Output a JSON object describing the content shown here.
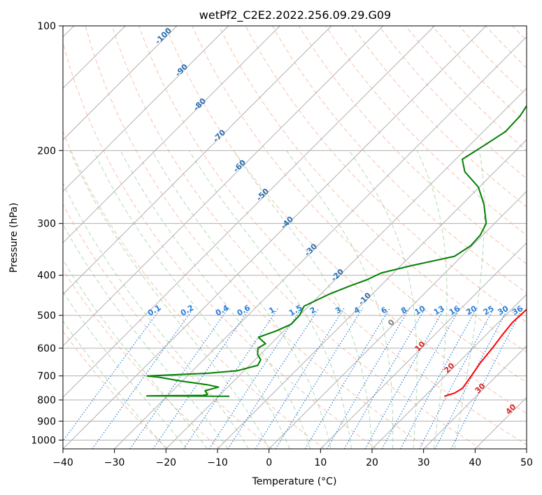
{
  "chart_data": {
    "type": "line",
    "subtype": "skew-t log-p",
    "title": "wetPf2_C2E2.2022.256.09.29.G09",
    "xlabel": "Temperature (°C)",
    "ylabel": "Pressure (hPa)",
    "xlim": [
      -40,
      50
    ],
    "ylim": [
      1050,
      100
    ],
    "x_ticks": [
      -40,
      -30,
      -20,
      -10,
      0,
      10,
      20,
      30,
      40,
      50
    ],
    "x_tick_labels": [
      "−40",
      "−30",
      "−20",
      "−10",
      "0",
      "10",
      "20",
      "30",
      "40",
      "50"
    ],
    "y_ticks": [
      100,
      200,
      300,
      400,
      500,
      600,
      700,
      800,
      900,
      1000
    ],
    "y_tick_labels": [
      "100",
      "200",
      "300",
      "400",
      "500",
      "600",
      "700",
      "800",
      "900",
      "1000"
    ],
    "grid": true,
    "series": [
      {
        "name": "temperature",
        "color": "#ff0000",
        "points": [
          [
            784,
            23.8
          ],
          [
            770,
            25.2
          ],
          [
            750,
            25.8
          ],
          [
            700,
            25.1
          ],
          [
            650,
            24.3
          ],
          [
            600,
            23.8
          ],
          [
            560,
            23.2
          ],
          [
            520,
            22.7
          ],
          [
            490,
            22.9
          ],
          [
            460,
            22.9
          ],
          [
            430,
            22.6
          ],
          [
            400,
            20.7
          ],
          [
            370,
            16.9
          ],
          [
            340,
            13.0
          ],
          [
            310,
            10.0
          ],
          [
            280,
            7.0
          ],
          [
            260,
            6.2
          ],
          [
            240,
            5.6
          ],
          [
            225,
            5.5
          ],
          [
            215,
            5.3
          ],
          [
            200,
            3.9
          ],
          [
            180,
            1.7
          ],
          [
            165,
            -0.2
          ],
          [
            155,
            -1.0
          ],
          [
            148,
            -0.9
          ],
          [
            140,
            0.5
          ],
          [
            130,
            2.6
          ],
          [
            115,
            2.2
          ],
          [
            110,
            1.4
          ],
          [
            105,
            0.9
          ],
          [
            100,
            0.7
          ]
        ]
      },
      {
        "name": "dewpoint",
        "color": "#008000",
        "points": [
          [
            784,
            -17.9
          ],
          [
            782,
            -34.0
          ],
          [
            780,
            -23.2
          ],
          [
            776,
            -22.5
          ],
          [
            760,
            -23.7
          ],
          [
            745,
            -21.8
          ],
          [
            735,
            -24.5
          ],
          [
            720,
            -30.4
          ],
          [
            705,
            -35.3
          ],
          [
            700,
            -37.8
          ],
          [
            690,
            -26.8
          ],
          [
            680,
            -21.3
          ],
          [
            660,
            -18.4
          ],
          [
            640,
            -18.9
          ],
          [
            622,
            -20.5
          ],
          [
            600,
            -21.7
          ],
          [
            585,
            -21.1
          ],
          [
            565,
            -23.7
          ],
          [
            545,
            -21.5
          ],
          [
            525,
            -19.9
          ],
          [
            500,
            -20.0
          ],
          [
            475,
            -20.9
          ],
          [
            445,
            -18.4
          ],
          [
            425,
            -16.0
          ],
          [
            410,
            -13.8
          ],
          [
            395,
            -12.4
          ],
          [
            380,
            -8.2
          ],
          [
            360,
            -1.4
          ],
          [
            340,
            -0.3
          ],
          [
            320,
            -0.5
          ],
          [
            300,
            -1.6
          ],
          [
            270,
            -5.7
          ],
          [
            245,
            -10.2
          ],
          [
            225,
            -15.8
          ],
          [
            210,
            -18.7
          ],
          [
            195,
            -17.2
          ],
          [
            180,
            -15.7
          ],
          [
            165,
            -15.9
          ],
          [
            152,
            -16.9
          ],
          [
            140,
            -17.5
          ],
          [
            128,
            -18.1
          ],
          [
            120,
            -16.8
          ],
          [
            112,
            -14.2
          ],
          [
            106,
            -11.8
          ],
          [
            100,
            -9.7
          ]
        ]
      }
    ],
    "mixing_ratio_labels": [
      "0.1",
      "0.2",
      "0.4",
      "0.6",
      "1",
      "1.5",
      "2",
      "3",
      "4",
      "6",
      "8",
      "10",
      "13",
      "16",
      "20",
      "25",
      "30",
      "36"
    ],
    "dry_adiabat_labels": [
      "-100",
      "-90",
      "-80",
      "-70",
      "-60",
      "-50",
      "-40",
      "-30",
      "-20",
      "-10",
      "0",
      "10",
      "20",
      "30",
      "40"
    ],
    "colors": {
      "temperature": "#ff0000",
      "dewpoint": "#008000",
      "isotherm": "#b0b0b0",
      "dry_adiabat": "#f5a587",
      "moist_adiabat": "#7fbf7f",
      "mixing_ratio": "#2a7fd5",
      "cold_label": "#2a6fb0",
      "warm_label": "#d62728"
    }
  }
}
